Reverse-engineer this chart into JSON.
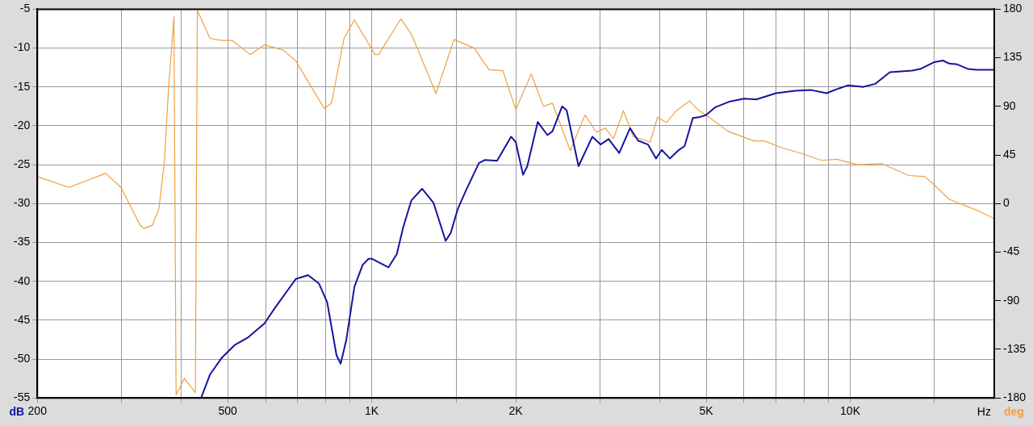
{
  "chart_data": {
    "type": "line",
    "xlabel": "Hz",
    "ylabel": "dB",
    "y2label": "deg",
    "log": "x",
    "grid": true,
    "legend": false,
    "marker": "none",
    "line_style": "solid",
    "xlim": [
      200,
      20000
    ],
    "xticks": [
      200,
      {
        "value": 300,
        "label": null
      },
      {
        "value": 400,
        "label": null
      },
      500,
      {
        "value": 600,
        "label": null
      },
      {
        "value": 700,
        "label": null
      },
      {
        "value": 800,
        "label": null
      },
      {
        "value": 900,
        "label": null
      },
      {
        "value": 1000,
        "label": "1K"
      },
      {
        "value": 1500,
        "label": null
      },
      {
        "value": 2000,
        "label": "2K"
      },
      {
        "value": 3000,
        "label": null
      },
      {
        "value": 4000,
        "label": null
      },
      {
        "value": 5000,
        "label": "5K"
      },
      {
        "value": 6000,
        "label": null
      },
      {
        "value": 7000,
        "label": null
      },
      {
        "value": 8000,
        "label": null
      },
      {
        "value": 9000,
        "label": null
      },
      {
        "value": 10000,
        "label": "10K"
      },
      {
        "value": 15000,
        "label": null
      }
    ],
    "ylim": [
      -55,
      -5
    ],
    "yticks": [
      -55,
      -50,
      -45,
      -40,
      -35,
      -30,
      -25,
      -20,
      -15,
      -10,
      -5
    ],
    "y2lim": [
      -180,
      180
    ],
    "y2ticks": [
      -180,
      -135,
      -90,
      -45,
      0,
      45,
      90,
      135,
      180
    ],
    "series": [
      {
        "color": "#1414a0",
        "x": [
          440,
          459,
          485,
          517,
          552,
          597,
          628,
          694,
          736,
          776,
          807,
          844,
          861,
          885,
          920,
          957,
          985,
          1000,
          1084,
          1128,
          1164,
          1210,
          1274,
          1346,
          1427,
          1462,
          1513,
          1574,
          1675,
          1722,
          1828,
          1955,
          2000,
          2071,
          2114,
          2223,
          2329,
          2386,
          2500,
          2555,
          2705,
          2891,
          3007,
          3127,
          3290,
          3466,
          3603,
          3778,
          3928,
          4038,
          4198,
          4385,
          4507,
          4689,
          4830,
          5000,
          5227,
          5584,
          6000,
          6363,
          7000,
          7665,
          8290,
          8920,
          9460,
          9880,
          10640,
          11280,
          12100,
          13480,
          14000,
          15000,
          15630,
          16100,
          16750,
          17650,
          18360,
          20000
        ],
        "values": [
          -55,
          -52.0,
          -49.9,
          -48.2,
          -47.2,
          -45.4,
          -43.4,
          -39.7,
          -39.2,
          -40.3,
          -42.7,
          -49.5,
          -50.6,
          -47.5,
          -40.7,
          -37.9,
          -37.1,
          -37.1,
          -38.2,
          -36.5,
          -33.0,
          -29.6,
          -28.1,
          -29.9,
          -34.8,
          -33.8,
          -30.7,
          -28.3,
          -24.8,
          -24.4,
          -24.5,
          -21.4,
          -22.1,
          -26.3,
          -25.2,
          -19.5,
          -21.2,
          -20.7,
          -17.5,
          -18.0,
          -25.2,
          -21.4,
          -22.4,
          -21.7,
          -23.5,
          -20.3,
          -21.9,
          -22.4,
          -24.2,
          -23.1,
          -24.2,
          -23.1,
          -22.6,
          -19.0,
          -18.9,
          -18.6,
          -17.6,
          -16.9,
          -16.5,
          -16.6,
          -15.8,
          -15.5,
          -15.4,
          -15.8,
          -15.2,
          -14.8,
          -15.0,
          -14.6,
          -13.1,
          -12.9,
          -12.7,
          -11.8,
          -11.6,
          -12.0,
          -12.1,
          -12.7,
          -12.8,
          -12.8
        ]
      },
      {
        "color": "#eea040",
        "axis": "y2",
        "x": [
          200,
          233,
          278,
          299,
          328,
          334,
          348,
          359,
          369,
          376,
          386,
          390,
          406,
          428,
          432,
          459,
          485,
          511,
          557,
          597,
          654,
          694,
          757,
          796,
          824,
          875,
          920,
          1016,
          1034,
          1150,
          1210,
          1362,
          1486,
          1637,
          1758,
          1880,
          2000,
          2154,
          2285,
          2386,
          2600,
          2790,
          2950,
          3079,
          3200,
          3357,
          3518,
          3820,
          3957,
          4130,
          4333,
          4613,
          4830,
          5000,
          5547,
          6290,
          6620,
          7160,
          7960,
          8710,
          9380,
          10340,
          11640,
          13250,
          14330,
          15000,
          16100,
          16950,
          18360,
          20000
        ],
        "values": [
          25,
          15,
          28,
          15,
          -20,
          -23,
          -20,
          -5,
          40,
          106,
          173,
          -177,
          -162,
          -175,
          179,
          153,
          151,
          151,
          138,
          147,
          142,
          132,
          104,
          88,
          93,
          153,
          170,
          138,
          138,
          171,
          157,
          102,
          152,
          144,
          124,
          123,
          87,
          120,
          90,
          93,
          49,
          82,
          66,
          70,
          60,
          86,
          62,
          57,
          80,
          75,
          86,
          95,
          86,
          82,
          67,
          58,
          58,
          52,
          46,
          40,
          41,
          36,
          37,
          26,
          25,
          17,
          4,
          0,
          -6,
          -14
        ]
      }
    ]
  }
}
